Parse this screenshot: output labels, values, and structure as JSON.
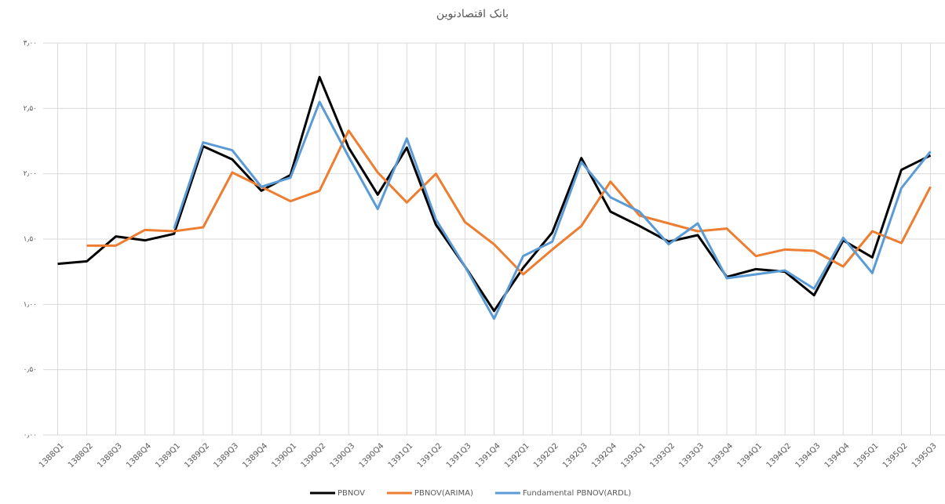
{
  "chart_data": {
    "type": "line",
    "title": "بانک اقتصادنوین",
    "categories": [
      "1388Q1",
      "1388Q2",
      "1388Q3",
      "1388Q4",
      "1389Q1",
      "1389Q2",
      "1389Q3",
      "1389Q4",
      "1390Q1",
      "1390Q2",
      "1390Q3",
      "1390Q4",
      "1391Q1",
      "1391Q2",
      "1391Q3",
      "1391Q4",
      "1392Q1",
      "1392Q2",
      "1392Q3",
      "1392Q4",
      "1393Q1",
      "1393Q2",
      "1393Q3",
      "1393Q4",
      "1394Q1",
      "1394Q2",
      "1394Q3",
      "1394Q4",
      "1395Q1",
      "1395Q2",
      "1395Q3"
    ],
    "series": [
      {
        "name": "PBNOV",
        "color": "#000000",
        "values": [
          1.31,
          1.33,
          1.52,
          1.49,
          1.54,
          2.21,
          2.11,
          1.87,
          1.99,
          2.74,
          2.2,
          1.84,
          2.2,
          1.61,
          1.29,
          0.95,
          1.28,
          1.55,
          2.12,
          1.71,
          1.6,
          1.48,
          1.53,
          1.21,
          1.27,
          1.25,
          1.07,
          1.49,
          1.36,
          2.03,
          2.14
        ]
      },
      {
        "name": "PBNOV(ARIMA)",
        "color": "#ed7d31",
        "values": [
          null,
          1.45,
          1.45,
          1.57,
          1.56,
          1.59,
          2.01,
          1.9,
          1.79,
          1.87,
          2.33,
          2.01,
          1.78,
          2.0,
          1.63,
          1.46,
          1.23,
          1.42,
          1.6,
          1.94,
          1.68,
          1.62,
          1.56,
          1.58,
          1.37,
          1.42,
          1.41,
          1.29,
          1.56,
          1.47,
          1.9
        ]
      },
      {
        "name": "Fundamental PBNOV(ARDL)",
        "color": "#5b9bd5",
        "values": [
          null,
          null,
          null,
          null,
          1.58,
          2.24,
          2.18,
          1.9,
          1.97,
          2.55,
          2.13,
          1.73,
          2.27,
          1.65,
          1.29,
          0.89,
          1.37,
          1.48,
          2.09,
          1.82,
          1.71,
          1.46,
          1.62,
          1.2,
          1.23,
          1.26,
          1.12,
          1.51,
          1.24,
          1.89,
          2.17
        ]
      }
    ],
    "ylim": [
      0,
      3
    ],
    "yticks": [
      {
        "value": 0,
        "label": "۰٫۰۰"
      },
      {
        "value": 0.5,
        "label": "۰٫۵۰"
      },
      {
        "value": 1,
        "label": "۱٫۰۰"
      },
      {
        "value": 1.5,
        "label": "۱٫۵۰"
      },
      {
        "value": 2,
        "label": "۲٫۰۰"
      },
      {
        "value": 2.5,
        "label": "۲٫۵۰"
      },
      {
        "value": 3,
        "label": "۳٫۰۰"
      }
    ],
    "grid": true,
    "legend": "bottom"
  }
}
